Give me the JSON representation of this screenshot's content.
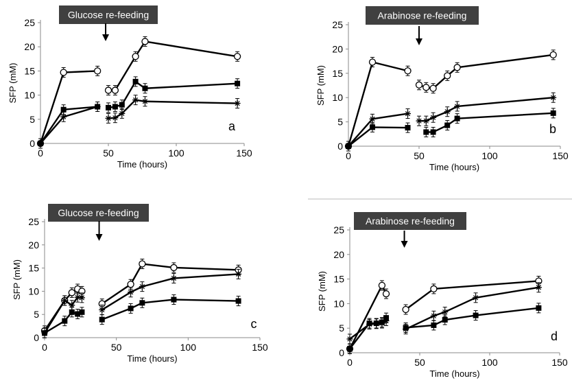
{
  "chart_data": [
    {
      "type": "line",
      "xlabel": "Time (hours)",
      "ylabel": "SFP (mM)",
      "xlim": [
        0,
        150
      ],
      "ylim": [
        0,
        25
      ],
      "xticks": [
        0,
        50,
        100,
        150
      ],
      "yticks": [
        0,
        5,
        10,
        15,
        20,
        25
      ],
      "grid": false,
      "panel_label": "a",
      "annotation": {
        "text": "Glucose re-feeding",
        "arrow_x": 48
      },
      "series": [
        {
          "marker": "open-circle",
          "segments": [
            [
              [
                0,
                0
              ],
              [
                17,
                14.7
              ],
              [
                42,
                15.0
              ]
            ],
            [
              [
                50,
                11.0
              ],
              [
                55,
                11.0
              ],
              [
                70,
                18.0
              ],
              [
                77,
                21.1
              ],
              [
                145,
                18.0
              ]
            ]
          ]
        },
        {
          "marker": "filled-square",
          "segments": [
            [
              [
                0,
                0
              ],
              [
                17,
                7.0
              ],
              [
                42,
                7.6
              ]
            ],
            [
              [
                50,
                7.4
              ],
              [
                55,
                7.6
              ],
              [
                60,
                8.0
              ],
              [
                70,
                12.8
              ],
              [
                77,
                11.4
              ],
              [
                145,
                12.4
              ]
            ]
          ]
        },
        {
          "marker": "asterisk",
          "segments": [
            [
              [
                0,
                0
              ],
              [
                17,
                5.5
              ],
              [
                42,
                7.6
              ]
            ],
            [
              [
                50,
                5.2
              ],
              [
                55,
                5.3
              ],
              [
                60,
                6.2
              ],
              [
                70,
                9.0
              ],
              [
                77,
                8.7
              ],
              [
                145,
                8.3
              ]
            ]
          ]
        }
      ]
    },
    {
      "type": "line",
      "xlabel": "Time (hours)",
      "ylabel": "SFP (mM)",
      "xlim": [
        0,
        150
      ],
      "ylim": [
        0,
        25
      ],
      "xticks": [
        0,
        50,
        100,
        150
      ],
      "yticks": [
        0,
        5,
        10,
        15,
        20,
        25
      ],
      "grid": false,
      "panel_label": "b",
      "annotation": {
        "text": "Arabinose re-feeding",
        "arrow_x": 50
      },
      "series": [
        {
          "marker": "open-circle",
          "segments": [
            [
              [
                0,
                0
              ],
              [
                17,
                17.3
              ],
              [
                42,
                15.5
              ]
            ],
            [
              [
                50,
                12.6
              ],
              [
                55,
                12.1
              ],
              [
                60,
                11.9
              ],
              [
                70,
                14.5
              ],
              [
                77,
                16.2
              ],
              [
                145,
                18.8
              ]
            ]
          ]
        },
        {
          "marker": "asterisk",
          "segments": [
            [
              [
                0,
                0
              ],
              [
                17,
                5.6
              ],
              [
                42,
                6.7
              ]
            ],
            [
              [
                50,
                5.2
              ],
              [
                55,
                5.2
              ],
              [
                60,
                5.9
              ],
              [
                70,
                7.1
              ],
              [
                77,
                8.2
              ],
              [
                145,
                10.0
              ]
            ]
          ]
        },
        {
          "marker": "filled-square",
          "segments": [
            [
              [
                0,
                0
              ],
              [
                17,
                3.9
              ],
              [
                42,
                3.8
              ]
            ],
            [
              [
                55,
                2.9
              ],
              [
                60,
                2.9
              ],
              [
                70,
                4.3
              ],
              [
                77,
                5.7
              ],
              [
                145,
                6.8
              ]
            ]
          ]
        }
      ]
    },
    {
      "type": "line",
      "xlabel": "Time (hours)",
      "ylabel": "SFP (mM)",
      "xlim": [
        0,
        150
      ],
      "ylim": [
        0,
        25
      ],
      "xticks": [
        0,
        50,
        100,
        150
      ],
      "yticks": [
        0,
        5,
        10,
        15,
        20,
        25
      ],
      "grid": false,
      "panel_label": "c",
      "annotation": {
        "text": "Glucose re-feeding",
        "arrow_x": 38
      },
      "series": [
        {
          "marker": "open-circle",
          "segments": [
            [
              [
                0,
                1.5
              ],
              [
                14,
                8.0
              ],
              [
                19,
                9.7
              ],
              [
                23,
                10.5
              ],
              [
                26,
                10.0
              ]
            ],
            [
              [
                40,
                7.3
              ],
              [
                60,
                11.5
              ],
              [
                68,
                15.9
              ],
              [
                90,
                15.1
              ],
              [
                135,
                14.6
              ]
            ]
          ]
        },
        {
          "marker": "asterisk",
          "segments": [
            [
              [
                0,
                1.0
              ],
              [
                14,
                8.0
              ],
              [
                19,
                7.0
              ],
              [
                23,
                8.7
              ],
              [
                26,
                8.6
              ]
            ],
            [
              [
                40,
                6.0
              ],
              [
                60,
                9.8
              ],
              [
                68,
                11.0
              ],
              [
                90,
                12.8
              ],
              [
                135,
                13.7
              ]
            ]
          ]
        },
        {
          "marker": "filled-square",
          "segments": [
            [
              [
                0,
                1.0
              ],
              [
                14,
                3.6
              ],
              [
                19,
                5.5
              ],
              [
                23,
                5.1
              ],
              [
                26,
                5.5
              ]
            ],
            [
              [
                40,
                3.9
              ],
              [
                60,
                6.3
              ],
              [
                68,
                7.5
              ],
              [
                90,
                8.2
              ],
              [
                135,
                7.9
              ]
            ]
          ]
        }
      ]
    },
    {
      "type": "line",
      "xlabel": "Time (hours)",
      "ylabel": "SFP (mM)",
      "xlim": [
        0,
        150
      ],
      "ylim": [
        0,
        25
      ],
      "xticks": [
        0,
        50,
        100,
        150
      ],
      "yticks": [
        0,
        5,
        10,
        15,
        20,
        25
      ],
      "grid": false,
      "panel_label": "d",
      "annotation": {
        "text": "Arabinose re-feeding",
        "arrow_x": 39
      },
      "series": [
        {
          "marker": "open-circle",
          "segments": [
            [
              [
                0,
                0.8
              ],
              [
                23,
                13.7
              ],
              [
                26,
                12.0
              ]
            ],
            [
              [
                40,
                8.8
              ],
              [
                60,
                13.0
              ],
              [
                135,
                14.6
              ]
            ]
          ]
        },
        {
          "marker": "asterisk",
          "segments": [
            [
              [
                0,
                2.8
              ],
              [
                14,
                5.8
              ],
              [
                19,
                5.9
              ],
              [
                23,
                6.0
              ],
              [
                26,
                6.5
              ]
            ],
            [
              [
                40,
                4.8
              ],
              [
                60,
                7.5
              ],
              [
                68,
                8.3
              ],
              [
                90,
                11.2
              ],
              [
                135,
                13.3
              ]
            ]
          ]
        },
        {
          "marker": "filled-square",
          "segments": [
            [
              [
                0,
                0.8
              ],
              [
                14,
                6.0
              ],
              [
                19,
                6.0
              ],
              [
                23,
                6.2
              ],
              [
                26,
                7.1
              ]
            ],
            [
              [
                40,
                5.1
              ],
              [
                60,
                5.6
              ],
              [
                68,
                6.7
              ],
              [
                90,
                7.6
              ],
              [
                135,
                9.1
              ]
            ]
          ]
        }
      ]
    }
  ]
}
